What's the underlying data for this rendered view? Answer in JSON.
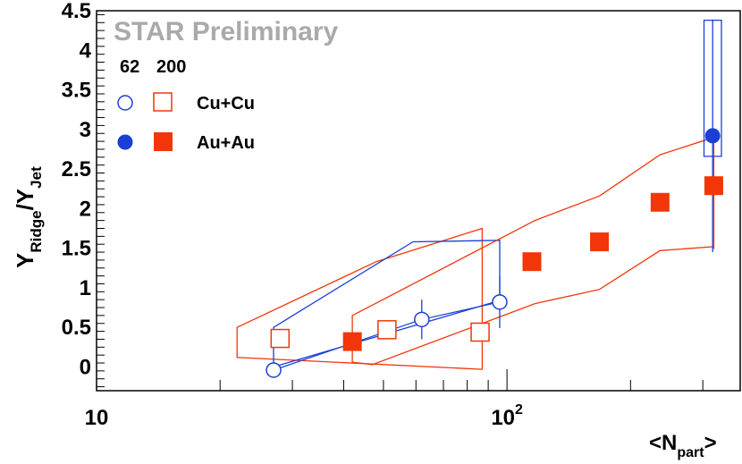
{
  "chart_data": {
    "type": "scatter",
    "watermark": "STAR Preliminary",
    "legend": {
      "placement": "top-left",
      "column_headers": [
        "62",
        "200"
      ],
      "rows": [
        "Cu+Cu",
        "Au+Au"
      ]
    },
    "xlabel": {
      "base": "<N",
      "sub": "part",
      "end": ">"
    },
    "ylabel": {
      "y1": "Y",
      "sub1": "Ridge",
      "slash": "/Y",
      "sub2": "Jet"
    },
    "x_scale": "log",
    "xlim": [
      10,
      370
    ],
    "ylim": [
      -0.3,
      4.5
    ],
    "x_tick_labels": [
      {
        "value": 10,
        "label": "10"
      },
      {
        "value": 100,
        "label": "10",
        "sup": "2"
      }
    ],
    "y_tick_labels": [
      "0",
      "0.5",
      "1",
      "1.5",
      "2",
      "2.5",
      "3",
      "3.5",
      "4",
      "4.5"
    ],
    "colors": {
      "blue": "#1a3fd6",
      "red": "#f2360a",
      "watermark": "#aaaaaa"
    },
    "series": [
      {
        "name": "Cu+Cu 62",
        "marker": "open-circle",
        "color": "#1a3fd6",
        "points": [
          {
            "x": 27,
            "y": -0.04,
            "err": 0.0
          },
          {
            "x": 62,
            "y": 0.6,
            "err": 0.25
          },
          {
            "x": 96,
            "y": 0.82,
            "err": 0.33
          }
        ]
      },
      {
        "name": "Cu+Cu 200",
        "marker": "open-square",
        "color": "#f2360a",
        "points": [
          {
            "x": 28,
            "y": 0.36
          },
          {
            "x": 51,
            "y": 0.47
          },
          {
            "x": 86,
            "y": 0.44
          }
        ]
      },
      {
        "name": "Au+Au 62",
        "marker": "filled-circle",
        "color": "#1a3fd6",
        "points": [
          {
            "x": 317,
            "y": 2.92,
            "err_low": 1.47,
            "err_high": 1.47
          }
        ]
      },
      {
        "name": "Au+Au 200",
        "marker": "filled-square",
        "color": "#f2360a",
        "points": [
          {
            "x": 42,
            "y": 0.32
          },
          {
            "x": 115,
            "y": 1.33
          },
          {
            "x": 168,
            "y": 1.58
          },
          {
            "x": 236,
            "y": 2.08
          },
          {
            "x": 319,
            "y": 2.29,
            "err_low": 0.8
          }
        ]
      }
    ],
    "bands": [
      {
        "color": "#f2360a",
        "points": [
          [
            22,
            0.5
          ],
          [
            48,
            1.33
          ],
          [
            87,
            1.75
          ],
          [
            87,
            -0.03
          ],
          [
            22,
            0.12
          ]
        ]
      },
      {
        "color": "#1a3fd6",
        "points": [
          [
            27,
            0.5
          ],
          [
            59,
            1.58
          ],
          [
            96,
            1.6
          ],
          [
            96,
            0.84
          ],
          [
            27,
            0.0
          ]
        ]
      },
      {
        "color": "#f2360a",
        "points": [
          [
            42,
            0.65
          ],
          [
            117,
            1.85
          ],
          [
            168,
            2.16
          ],
          [
            236,
            2.68
          ],
          [
            319,
            2.9
          ],
          [
            319,
            1.52
          ],
          [
            236,
            1.47
          ],
          [
            168,
            0.98
          ],
          [
            117,
            0.8
          ],
          [
            47,
            0.03
          ],
          [
            42,
            0.06
          ]
        ]
      },
      {
        "color": "#1a3fd6",
        "rect": true,
        "points": [
          [
            302,
            4.38
          ],
          [
            333,
            4.38
          ],
          [
            333,
            2.66
          ],
          [
            302,
            2.66
          ]
        ]
      }
    ]
  }
}
